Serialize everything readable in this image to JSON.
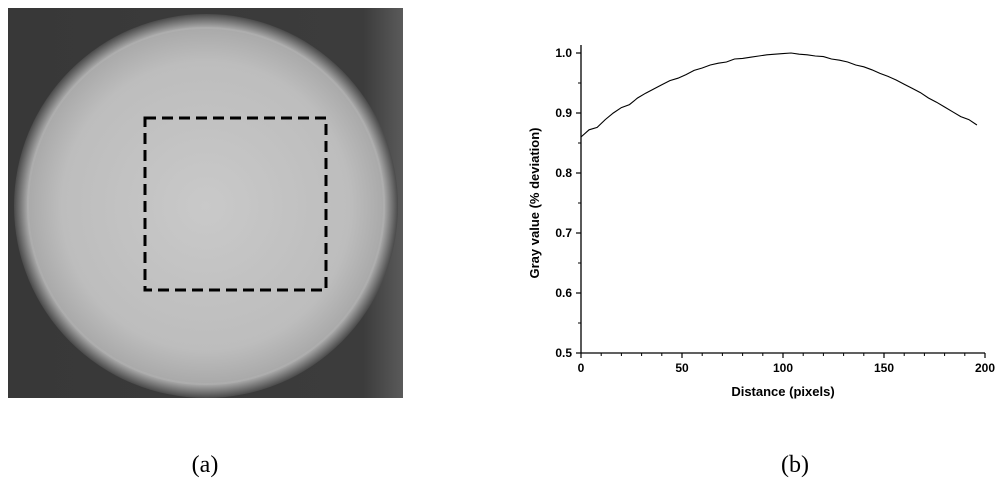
{
  "chart_data": {
    "type": "line",
    "xlabel": "Distance (pixels)",
    "ylabel": "Gray value (% deviation)",
    "x": [
      0,
      4,
      8,
      12,
      16,
      20,
      24,
      28,
      32,
      36,
      40,
      44,
      48,
      52,
      56,
      60,
      64,
      68,
      72,
      76,
      80,
      84,
      88,
      92,
      96,
      100,
      104,
      108,
      112,
      116,
      120,
      124,
      128,
      132,
      136,
      140,
      144,
      148,
      152,
      156,
      160,
      164,
      168,
      172,
      176,
      180,
      184,
      188,
      192,
      196
    ],
    "series": [
      {
        "color": "#000000",
        "values": [
          0.86,
          0.872,
          0.876,
          0.889,
          0.9,
          0.909,
          0.914,
          0.925,
          0.933,
          0.94,
          0.947,
          0.954,
          0.958,
          0.964,
          0.971,
          0.975,
          0.98,
          0.983,
          0.985,
          0.99,
          0.991,
          0.993,
          0.995,
          0.997,
          0.998,
          0.999,
          1.0,
          0.998,
          0.997,
          0.995,
          0.994,
          0.99,
          0.988,
          0.985,
          0.98,
          0.977,
          0.972,
          0.966,
          0.961,
          0.955,
          0.948,
          0.941,
          0.934,
          0.925,
          0.918,
          0.91,
          0.902,
          0.894,
          0.889,
          0.88
        ]
      }
    ],
    "xlim": [
      0,
      200
    ],
    "xticks": [
      0,
      50,
      100,
      150,
      200
    ],
    "ylim": [
      0.5,
      1.0
    ],
    "yticks": [
      0.5,
      0.6,
      0.7,
      0.8,
      0.9,
      {
        "value": 1.0,
        "label": "1.0"
      }
    ]
  },
  "captions": [
    "(a)",
    "(b)"
  ]
}
